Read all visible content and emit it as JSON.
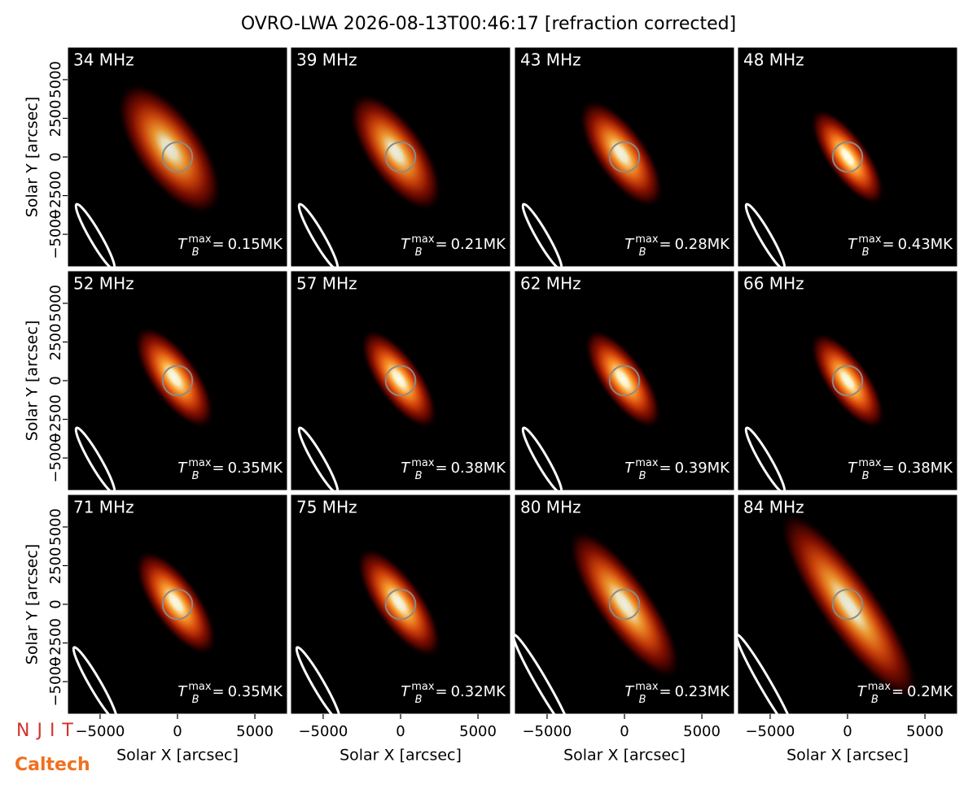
{
  "title": "OVRO-LWA 2026-08-13T00:46:17 [refraction corrected]",
  "tb_symbol": {
    "base": "T",
    "sub": "B",
    "sup": "max",
    "relation": "="
  },
  "logos": [
    "NJIT",
    "Caltech"
  ],
  "chart_data": [
    {
      "type": "image",
      "title": "34 MHz",
      "tb_max": {
        "value": 0.15,
        "label": "0.15MK"
      },
      "xlim": [
        -7100,
        7100
      ],
      "ylim": [
        -7100,
        7100
      ],
      "ylabel": "Solar Y [arcsec]",
      "yticks": [
        {
          "value": -5000,
          "label": "−5000"
        },
        {
          "value": -2500,
          "label": "−2500"
        },
        0,
        2500,
        5000
      ]
    },
    {
      "type": "image",
      "title": "39 MHz",
      "tb_max": {
        "value": 0.21,
        "label": "0.21MK"
      },
      "xlim": [
        -7100,
        7100
      ],
      "ylim": [
        -7100,
        7100
      ]
    },
    {
      "type": "image",
      "title": "43 MHz",
      "tb_max": {
        "value": 0.28,
        "label": "0.28MK"
      },
      "xlim": [
        -7100,
        7100
      ],
      "ylim": [
        -7100,
        7100
      ]
    },
    {
      "type": "image",
      "title": "48 MHz",
      "tb_max": {
        "value": 0.43,
        "label": "0.43MK"
      },
      "xlim": [
        -7100,
        7100
      ],
      "ylim": [
        -7100,
        7100
      ]
    },
    {
      "type": "image",
      "title": "52 MHz",
      "tb_max": {
        "value": 0.35,
        "label": "0.35MK"
      },
      "xlim": [
        -7100,
        7100
      ],
      "ylim": [
        -7100,
        7100
      ],
      "ylabel": "Solar Y [arcsec]",
      "yticks": [
        {
          "value": -5000,
          "label": "−5000"
        },
        {
          "value": -2500,
          "label": "−2500"
        },
        0,
        2500,
        5000
      ]
    },
    {
      "type": "image",
      "title": "57 MHz",
      "tb_max": {
        "value": 0.38,
        "label": "0.38MK"
      },
      "xlim": [
        -7100,
        7100
      ],
      "ylim": [
        -7100,
        7100
      ]
    },
    {
      "type": "image",
      "title": "62 MHz",
      "tb_max": {
        "value": 0.39,
        "label": "0.39MK"
      },
      "xlim": [
        -7100,
        7100
      ],
      "ylim": [
        -7100,
        7100
      ]
    },
    {
      "type": "image",
      "title": "66 MHz",
      "tb_max": {
        "value": 0.38,
        "label": "0.38MK"
      },
      "xlim": [
        -7100,
        7100
      ],
      "ylim": [
        -7100,
        7100
      ]
    },
    {
      "type": "image",
      "title": "71 MHz",
      "tb_max": {
        "value": 0.35,
        "label": "0.35MK"
      },
      "xlim": [
        -7100,
        7100
      ],
      "ylim": [
        -7100,
        7100
      ],
      "ylabel": "Solar Y [arcsec]",
      "yticks": [
        {
          "value": -5000,
          "label": "−5000"
        },
        {
          "value": -2500,
          "label": "−2500"
        },
        0,
        2500,
        5000
      ],
      "xlabel": "Solar X [arcsec]",
      "xticks": [
        {
          "value": -5000,
          "label": "−5000"
        },
        0,
        5000
      ]
    },
    {
      "type": "image",
      "title": "75 MHz",
      "tb_max": {
        "value": 0.32,
        "label": "0.32MK"
      },
      "xlim": [
        -7100,
        7100
      ],
      "ylim": [
        -7100,
        7100
      ],
      "xlabel": "Solar X [arcsec]",
      "xticks": [
        {
          "value": -5000,
          "label": "−5000"
        },
        0,
        5000
      ]
    },
    {
      "type": "image",
      "title": "80 MHz",
      "tb_max": {
        "value": 0.23,
        "label": "0.23MK"
      },
      "xlim": [
        -7100,
        7100
      ],
      "ylim": [
        -7100,
        7100
      ],
      "xlabel": "Solar X [arcsec]",
      "xticks": [
        {
          "value": -5000,
          "label": "−5000"
        },
        0,
        5000
      ]
    },
    {
      "type": "image",
      "title": "84 MHz",
      "tb_max": {
        "value": 0.2,
        "label": "0.2MK"
      },
      "xlim": [
        -7100,
        7100
      ],
      "ylim": [
        -7100,
        7100
      ],
      "xlabel": "Solar X [arcsec]",
      "xticks": [
        {
          "value": -5000,
          "label": "−5000"
        },
        0,
        5000
      ]
    }
  ]
}
